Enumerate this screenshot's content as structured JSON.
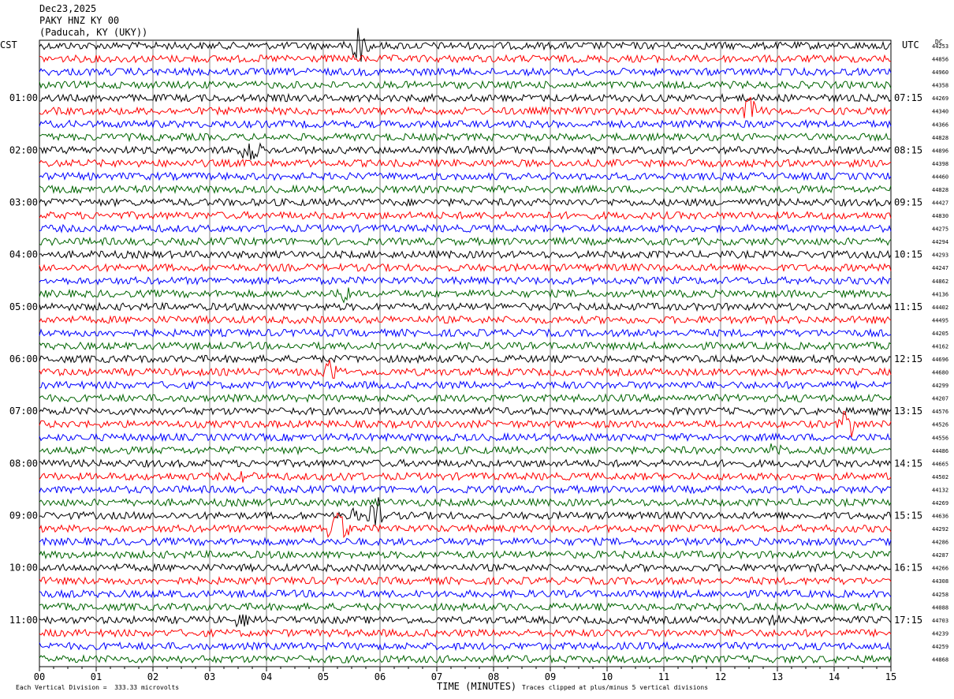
{
  "header": {
    "date": "Dec23,2025",
    "station": "PAKY HNZ KY 00",
    "location": "(Paducah, KY (UKY))"
  },
  "left_zone": "CST",
  "right_zone": "UTC",
  "dc_label": "DC",
  "footer": {
    "xlabel": "TIME (MINUTES)",
    "scale_note": "Each Vertical Division =  333.33 microvolts",
    "clip_note": "Traces clipped at plus/minus 5 vertical divisions"
  },
  "colors": {
    "trace_cycle": [
      "#000000",
      "#ff0000",
      "#0000ff",
      "#006400"
    ],
    "grid": "#808080"
  },
  "chart_data": {
    "type": "line",
    "title": "PAKY HNZ KY 00",
    "xlabel": "TIME (MINUTES)",
    "xlim": [
      0,
      15
    ],
    "x_ticks": [
      "00",
      "01",
      "02",
      "03",
      "04",
      "05",
      "06",
      "07",
      "08",
      "09",
      "10",
      "11",
      "12",
      "13",
      "14",
      "15"
    ],
    "trace_count": 48,
    "trace_interval_minutes": 15,
    "left_hour_labels": [
      "01:00",
      "02:00",
      "03:00",
      "04:00",
      "05:00",
      "06:00",
      "07:00",
      "08:00",
      "09:00",
      "10:00",
      "11:00"
    ],
    "right_hour_labels": [
      "07:15",
      "08:15",
      "09:15",
      "10:15",
      "11:15",
      "12:15",
      "13:15",
      "14:15",
      "15:15",
      "16:15",
      "17:15"
    ],
    "dc_offsets": [
      "44253",
      "44856",
      "44960",
      "44358",
      "44269",
      "44340",
      "44366",
      "44828",
      "44896",
      "44398",
      "44460",
      "44828",
      "44427",
      "44830",
      "44275",
      "44294",
      "44293",
      "44247",
      "44862",
      "44136",
      "44402",
      "44495",
      "44205",
      "44162",
      "44696",
      "44680",
      "44299",
      "44207",
      "44576",
      "44526",
      "44556",
      "44486",
      "44665",
      "44502",
      "44132",
      "44269",
      "44636",
      "44292",
      "44286",
      "44287",
      "44266",
      "44308",
      "44258",
      "44088",
      "44703",
      "44239",
      "44259",
      "44868"
    ],
    "events": [
      {
        "trace": 1,
        "minute": 5.6,
        "amplitude": 2.5
      },
      {
        "trace": 6,
        "minute": 12.5,
        "amplitude": 2.2
      },
      {
        "trace": 9,
        "minute": 3.7,
        "amplitude": 2.0
      },
      {
        "trace": 20,
        "minute": 5.4,
        "amplitude": 1.0
      },
      {
        "trace": 26,
        "minute": 5.15,
        "amplitude": 1.6
      },
      {
        "trace": 30,
        "minute": 14.25,
        "amplitude": 2.0
      },
      {
        "trace": 31,
        "minute": 9.85,
        "amplitude": 1.0
      },
      {
        "trace": 32,
        "minute": 13.0,
        "amplitude": 0.9
      },
      {
        "trace": 34,
        "minute": 3.65,
        "amplitude": 1.2
      },
      {
        "trace": 34,
        "minute": 5.3,
        "amplitude": 0.8
      },
      {
        "trace": 37,
        "minute": 5.6,
        "amplitude": 1.2
      },
      {
        "trace": 37,
        "minute": 5.95,
        "amplitude": 2.5
      },
      {
        "trace": 38,
        "minute": 5.25,
        "amplitude": 2.8
      },
      {
        "trace": 45,
        "minute": 3.5,
        "amplitude": 0.8
      },
      {
        "trace": 45,
        "minute": 13.0,
        "amplitude": 1.0
      }
    ]
  }
}
